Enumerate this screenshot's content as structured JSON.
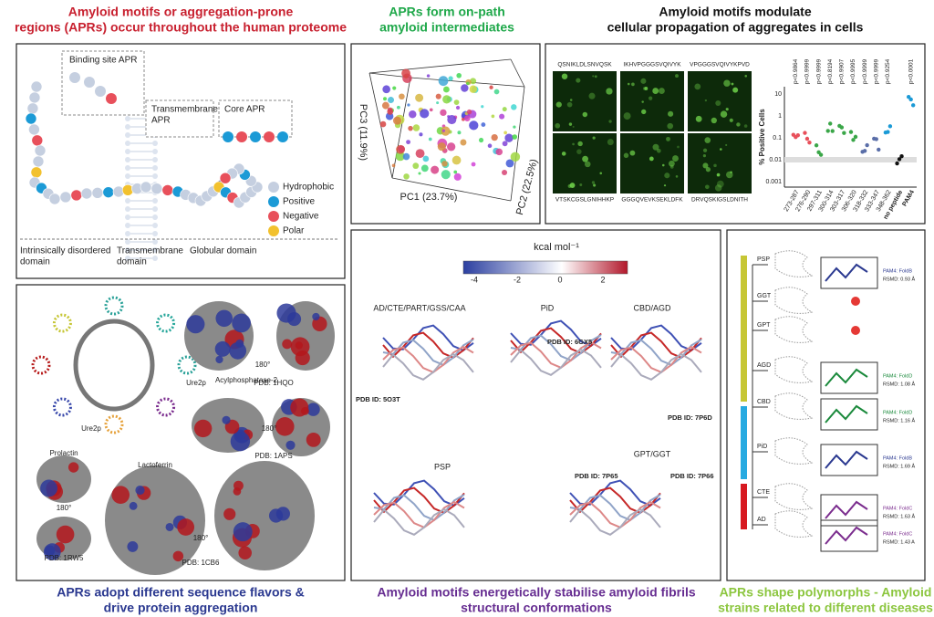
{
  "panels": {
    "proteome": {
      "title": [
        "Amyloid motifs or aggregation-prone",
        "regions (APRs) occur throughout the human proteome"
      ],
      "callouts": [
        [
          "Binding site APR"
        ],
        [
          "Transmembrane",
          "APR"
        ],
        [
          "Core APR"
        ]
      ],
      "legend": [
        "Hydrophobic",
        "Positive",
        "Negative",
        "Polar"
      ],
      "domains": [
        [
          "Intrinsically disordered",
          "domain"
        ],
        [
          "Transmembrane",
          "domain"
        ],
        [
          "Globular domain"
        ]
      ]
    },
    "intermediates": {
      "title": [
        "APRs form on-path",
        "amyloid intermediates"
      ],
      "axes": [
        "PC1 (23.7%)",
        "PC2 (22.5%)",
        "PC3 (11.9%)"
      ]
    },
    "propagation": {
      "title": [
        "Amyloid motifs modulate",
        "cellular propagation of aggregates in cells"
      ],
      "sequences": [
        "QSNIKLDLSNVQSK",
        "IKHVPGGGSVQIVYK",
        "VPGGGSVQIVYKPVD",
        "VTSKCGSLGNIHHKP",
        "GGGQVEVKSEKLDFK",
        "DRVQSKIGSLDNITH"
      ],
      "y_label": "% Positive Cells",
      "y_ticks": [
        "10",
        "1",
        "0.1",
        "0.01",
        "0.001"
      ],
      "groups": [
        "273-287",
        "276-290",
        "297-311",
        "300-314",
        "303-317",
        "306-320",
        "318-332",
        "333-347",
        "348-362",
        "no peptide",
        "PAM4"
      ],
      "p_values": [
        "p<0.9864",
        "p<0.9999",
        "p<0.9999",
        "p<0.8194",
        "p<0.9907",
        "p<0.9995",
        "p<0.9999",
        "p<0.9999",
        "p<0.9254",
        "p<0.0001"
      ]
    },
    "flavors": {
      "title": [
        "APRs adopt different sequence flavors &",
        "drive protein aggregation"
      ],
      "labels": [
        "Ure2p",
        "Ure2p",
        "PDB: 1HQO",
        "180°",
        "Acylphosphatase-2",
        "180°",
        "PDB: 1APS",
        "Prolactin",
        "180°",
        "PDB: 1RW5",
        "Lactoferrin",
        "180°",
        "PDB: 1CB6"
      ]
    },
    "energetics": {
      "title": [
        "Amyloid motifs energetically stabilise amyloid fibrils",
        "structural conformations"
      ],
      "unit": "kcal mol⁻¹",
      "scale_ticks": [
        "-4",
        "-2",
        "0",
        "2"
      ],
      "structures": [
        "AD/CTE/PART/GSS/CAA",
        "PiD",
        "CBD/AGD",
        "PSP",
        "GPT/GGT"
      ],
      "pdb": [
        "PDB ID: 5O3T",
        "PDB ID: 6GX5",
        "PDB ID: 7P6D",
        "PDB ID: 7P65",
        "PDB ID: 7P66"
      ]
    },
    "polymorphs": {
      "title": [
        "APRs shape polymorphs - Amyloid",
        "strains related to different diseases"
      ],
      "diseases": [
        "PSP",
        "GGT",
        "GPT",
        "AGD",
        "CBD",
        "PiD",
        "CTE",
        "AD"
      ],
      "fits": [
        [
          "PAM4: FoldB",
          "RSMD: 0.93 Å"
        ],
        [
          "PAM4: FoldD",
          "RSMD: 1.08 Å"
        ],
        [
          "PAM4: FoldD",
          "RSMD: 1.16 Å"
        ],
        [
          "PAM4: FoldB",
          "RSMD: 1.69 Å"
        ],
        [
          "PAM4: FoldC",
          "RSMD: 1.63 Å"
        ],
        [
          "PAM4: FoldC",
          "RSMD: 1.43 A"
        ]
      ]
    }
  }
}
